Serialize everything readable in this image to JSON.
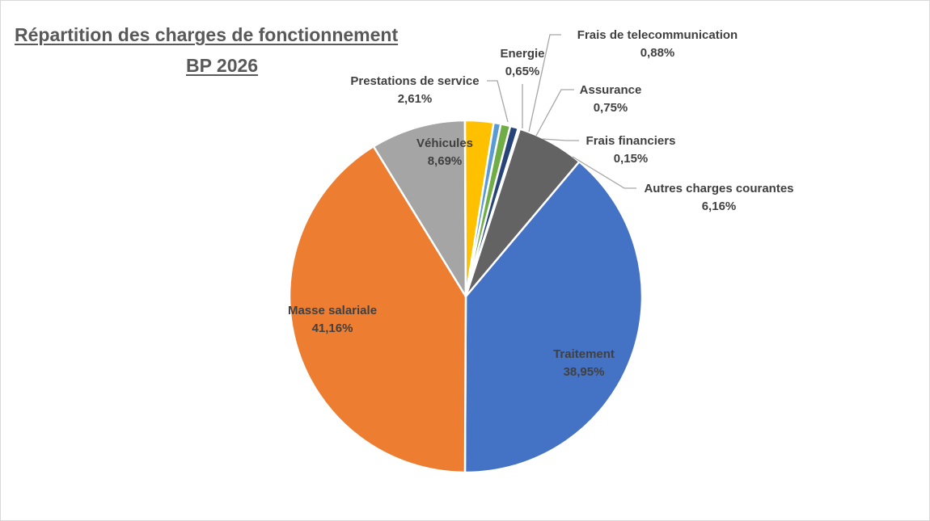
{
  "chart_data": {
    "type": "pie",
    "title_line1": "Répartition des charges de fonctionnement",
    "title_line2": "BP 2026",
    "slices": [
      {
        "name": "Traitement",
        "value": 38.95,
        "label": "38,95%",
        "color": "#4472c4"
      },
      {
        "name": "Masse salariale",
        "value": 41.16,
        "label": "41,16%",
        "color": "#ed7d31"
      },
      {
        "name": "Véhicules",
        "value": 8.69,
        "label": "8,69%",
        "color": "#a5a5a5"
      },
      {
        "name": "Prestations de service",
        "value": 2.61,
        "label": "2,61%",
        "color": "#ffc000"
      },
      {
        "name": "Energie",
        "value": 0.65,
        "label": "0,65%",
        "color": "#5b9bd5"
      },
      {
        "name": "Frais de telecommunication",
        "value": 0.88,
        "label": "0,88%",
        "color": "#70ad47"
      },
      {
        "name": "Assurance",
        "value": 0.75,
        "label": "0,75%",
        "color": "#264478"
      },
      {
        "name": "Frais financiers",
        "value": 0.15,
        "label": "0,15%",
        "color": "#9e480e"
      },
      {
        "name": "Autres charges courantes",
        "value": 6.16,
        "label": "6,16%",
        "color": "#636363"
      }
    ]
  }
}
